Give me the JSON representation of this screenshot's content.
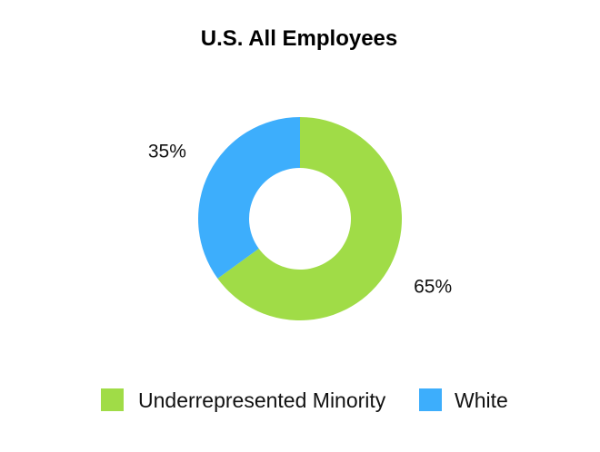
{
  "chart_data": {
    "type": "pie",
    "title": "U.S. All Employees",
    "donut": true,
    "start_angle_deg": 0,
    "direction": "clockwise",
    "slices": [
      {
        "name": "Underrepresented Minority",
        "value": 65,
        "label": "65%",
        "color": "#a0dc47"
      },
      {
        "name": "White",
        "value": 35,
        "label": "35%",
        "color": "#3daefc"
      }
    ],
    "legend": {
      "position": "bottom",
      "items": [
        "Underrepresented Minority",
        "White"
      ]
    }
  }
}
